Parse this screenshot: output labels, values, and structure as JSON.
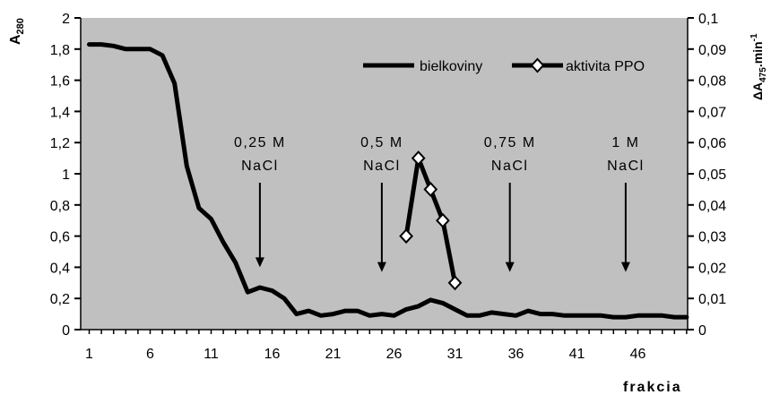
{
  "chart_data": {
    "type": "line",
    "xlabel": "frakcia",
    "ylabel_left": "A",
    "ylabel_left_sub": "280",
    "ylabel_right": "ΔA",
    "ylabel_right_sub": "475",
    "ylabel_right_suffix": ".min",
    "ylabel_right_sup": "-1",
    "ylim_left": [
      0,
      2
    ],
    "ylim_right": [
      0,
      0.1
    ],
    "xlim": [
      1,
      50
    ],
    "x_ticks": [
      "1",
      "6",
      "11",
      "16",
      "21",
      "26",
      "31",
      "36",
      "41",
      "46"
    ],
    "y_left_ticks": [
      "0",
      "0,2",
      "0,4",
      "0,6",
      "0,8",
      "1",
      "1,2",
      "1,4",
      "1,6",
      "1,8",
      "2"
    ],
    "y_right_ticks": [
      "0",
      "0,01",
      "0,02",
      "0,03",
      "0,04",
      "0,05",
      "0,06",
      "0,07",
      "0,08",
      "0,09",
      "0,1"
    ],
    "plot_background": "#c0c0c0",
    "legend_position": "top-right",
    "series": [
      {
        "name": "bielkoviny",
        "axis": "left",
        "color": "#000000",
        "x": [
          1,
          2,
          3,
          4,
          5,
          6,
          7,
          8,
          9,
          10,
          11,
          12,
          13,
          14,
          15,
          16,
          17,
          18,
          19,
          20,
          21,
          22,
          23,
          24,
          25,
          26,
          27,
          28,
          29,
          30,
          31,
          32,
          33,
          34,
          35,
          36,
          37,
          38,
          39,
          40,
          41,
          42,
          43,
          44,
          45,
          46,
          47,
          48,
          49,
          50
        ],
        "values": [
          1.83,
          1.83,
          1.82,
          1.8,
          1.8,
          1.8,
          1.76,
          1.58,
          1.05,
          0.78,
          0.71,
          0.56,
          0.43,
          0.24,
          0.27,
          0.25,
          0.2,
          0.1,
          0.12,
          0.09,
          0.1,
          0.12,
          0.12,
          0.09,
          0.1,
          0.09,
          0.13,
          0.15,
          0.19,
          0.17,
          0.13,
          0.09,
          0.09,
          0.11,
          0.1,
          0.09,
          0.12,
          0.1,
          0.1,
          0.09,
          0.09,
          0.09,
          0.09,
          0.08,
          0.08,
          0.09,
          0.09,
          0.09,
          0.08,
          0.08
        ]
      },
      {
        "name": "aktivita PPO",
        "axis": "right",
        "color": "#000000",
        "marker": "diamond",
        "x": [
          27,
          28,
          29,
          30,
          31
        ],
        "values": [
          0.03,
          0.055,
          0.045,
          0.035,
          0.015
        ]
      }
    ],
    "annotations": [
      {
        "line1": "0,25 M",
        "line2": "NaCl",
        "x": 15,
        "arrow_from": 1.0,
        "arrow_to": 0.4
      },
      {
        "line1": "0,5 M",
        "line2": "NaCl",
        "x": 25,
        "arrow_from": 1.0,
        "arrow_to": 0.37
      },
      {
        "line1": "0,75 M",
        "line2": "NaCl",
        "x": 35.5,
        "arrow_from": 1.0,
        "arrow_to": 0.37
      },
      {
        "line1": "1 M",
        "line2": "NaCl",
        "x": 45,
        "arrow_from": 1.0,
        "arrow_to": 0.37
      }
    ]
  }
}
